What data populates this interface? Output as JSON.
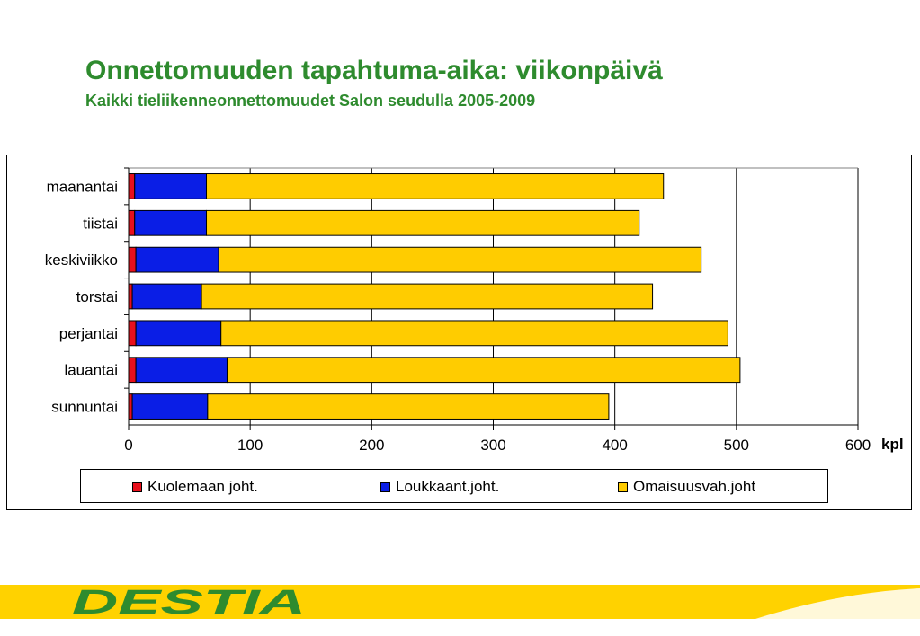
{
  "header": {
    "title": "Onnettomuuden tapahtuma-aika:  viikonpäivä",
    "subtitle": "Kaikki tieliikenneonnettomuudet Salon seudulla 2005-2009"
  },
  "chart_data": {
    "type": "bar",
    "orientation": "horizontal",
    "stacked": true,
    "categories": [
      "maanantai",
      "tiistai",
      "keskiviikko",
      "torstai",
      "perjantai",
      "lauantai",
      "sunnuntai"
    ],
    "series": [
      {
        "name": "Kuolemaan joht.",
        "color": "#e8101c",
        "values": [
          5,
          5,
          6,
          3,
          6,
          6,
          3
        ]
      },
      {
        "name": "Loukkaant.joht.",
        "color": "#0a1ee6",
        "values": [
          59,
          59,
          68,
          57,
          70,
          75,
          62
        ]
      },
      {
        "name": "Omaisuusvah.joht",
        "color": "#ffcc00",
        "values": [
          376,
          356,
          397,
          371,
          417,
          422,
          330
        ]
      }
    ],
    "xlim": [
      0,
      600
    ],
    "x_ticks": [
      "0",
      "100",
      "200",
      "300",
      "400",
      "500",
      "600"
    ],
    "xlabel": "kpl",
    "ylabel": "",
    "grid": true,
    "legend": "bottom"
  },
  "brand": {
    "logo_text": "DESTIA",
    "logo_color": "#2e8b2e",
    "band_color": "#ffd200"
  }
}
